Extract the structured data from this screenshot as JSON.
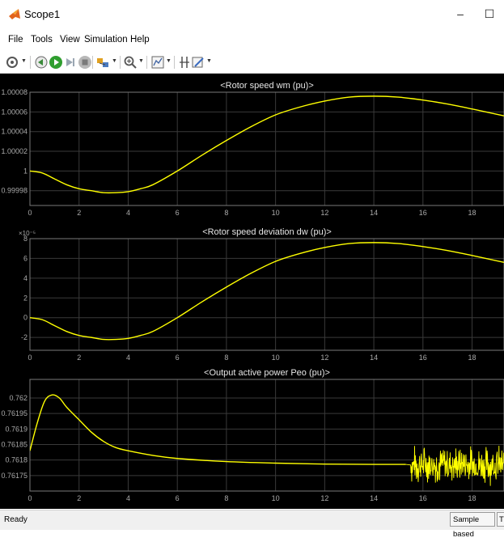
{
  "window": {
    "title": "Scope1",
    "minimize_glyph": "–",
    "maximize_glyph": "☐"
  },
  "menu": [
    "File",
    "Tools",
    "View",
    "Simulation",
    "Help"
  ],
  "toolbar": {
    "icons": [
      "settings-icon",
      "step-back-icon",
      "run-icon",
      "step-forward-icon",
      "stop-icon",
      "highlight-simulink-block-icon",
      "zoom-icon",
      "autoscale-icon",
      "cursor-measurements-icon",
      "style-icon"
    ]
  },
  "status": {
    "ready": "Ready",
    "mode": "Sample based",
    "extra": "T"
  },
  "colors": {
    "plot_background": "#000000",
    "axes_background": "#000000",
    "axes_border": "#7a7a7a",
    "grid": "#3a3a3a",
    "tick_text": "#aaaaaa",
    "title_text": "#e6e6e6",
    "trace": "#ffff00"
  },
  "chart_data": [
    {
      "type": "line",
      "title": "<Rotor speed  wm  (pu)>",
      "xlim": [
        0,
        19.3
      ],
      "ylim": [
        0.999965,
        1.00008
      ],
      "xticks": [
        0,
        2,
        4,
        6,
        8,
        10,
        12,
        14,
        16,
        18
      ],
      "xtick_labels": [
        "0",
        "2",
        "4",
        "6",
        "8",
        "10",
        "12",
        "14",
        "16",
        "18"
      ],
      "yticks": [
        0.99998,
        1,
        1.00002,
        1.00004,
        1.00006,
        1.00008
      ],
      "ytick_labels": [
        "0.99998",
        "1",
        "1.00002",
        "1.00004",
        "1.00006",
        "1.00008"
      ],
      "grid": true,
      "x": [
        0,
        0.5,
        1,
        1.5,
        2,
        2.5,
        3,
        3.5,
        4,
        4.5,
        5,
        6,
        7,
        8,
        9,
        10,
        11,
        12,
        13,
        14,
        15,
        16,
        17,
        18,
        19.3
      ],
      "y": [
        1.0,
        0.999998,
        0.999992,
        0.999986,
        0.999982,
        0.99998,
        0.999978,
        0.999978,
        0.999979,
        0.999982,
        0.999986,
        1.0,
        1.000016,
        1.000031,
        1.000045,
        1.000057,
        1.000065,
        1.000071,
        1.000075,
        1.000076,
        1.000075,
        1.000072,
        1.000068,
        1.000063,
        1.000056
      ]
    },
    {
      "type": "line",
      "title": "<Rotor speed deviation  dw (pu)>",
      "axis_multiplier": "×10⁻⁵",
      "xlim": [
        0,
        19.3
      ],
      "ylim": [
        -3.3,
        8
      ],
      "xticks": [
        0,
        2,
        4,
        6,
        8,
        10,
        12,
        14,
        16,
        18
      ],
      "xtick_labels": [
        "0",
        "2",
        "4",
        "6",
        "8",
        "10",
        "12",
        "14",
        "16",
        "18"
      ],
      "yticks": [
        -2,
        0,
        2,
        4,
        6,
        8
      ],
      "ytick_labels": [
        "-2",
        "0",
        "2",
        "4",
        "6",
        "8"
      ],
      "grid": true,
      "x": [
        0,
        0.5,
        1,
        1.5,
        2,
        2.5,
        3,
        3.5,
        4,
        4.5,
        5,
        6,
        7,
        8,
        9,
        10,
        11,
        12,
        13,
        14,
        15,
        16,
        17,
        18,
        19.3
      ],
      "y": [
        0,
        -0.2,
        -0.8,
        -1.4,
        -1.8,
        -2.0,
        -2.2,
        -2.2,
        -2.1,
        -1.8,
        -1.4,
        0,
        1.6,
        3.1,
        4.5,
        5.7,
        6.5,
        7.1,
        7.5,
        7.6,
        7.5,
        7.2,
        6.8,
        6.3,
        5.6
      ]
    },
    {
      "type": "line",
      "title": "<Output active power  Peo (pu)>",
      "xlim": [
        0,
        19.3
      ],
      "ylim": [
        0.7617,
        0.76206
      ],
      "xticks": [
        0,
        2,
        4,
        6,
        8,
        10,
        12,
        14,
        16,
        18
      ],
      "xtick_labels": [
        "0",
        "2",
        "4",
        "6",
        "8",
        "10",
        "12",
        "14",
        "16",
        "18"
      ],
      "yticks": [
        0.76175,
        0.7618,
        0.76185,
        0.7619,
        0.76195,
        0.762
      ],
      "ytick_labels": [
        "0.76175",
        "0.7618",
        "0.76185",
        "0.7619",
        "0.76195",
        "0.762"
      ],
      "grid": true,
      "x": [
        0,
        0.3,
        0.6,
        0.9,
        1.2,
        1.5,
        2,
        2.5,
        3,
        3.5,
        4,
        5,
        6,
        8,
        10,
        12,
        14,
        15.3
      ],
      "y": [
        0.76183,
        0.76192,
        0.76199,
        0.76201,
        0.762,
        0.76197,
        0.76193,
        0.76189,
        0.76186,
        0.76184,
        0.76183,
        0.761815,
        0.761805,
        0.761795,
        0.76179,
        0.761787,
        0.761786,
        0.761786
      ],
      "noise": {
        "x_start": 15.5,
        "x_end": 19.3,
        "center": 0.761785,
        "amplitude": 7e-05
      }
    }
  ]
}
